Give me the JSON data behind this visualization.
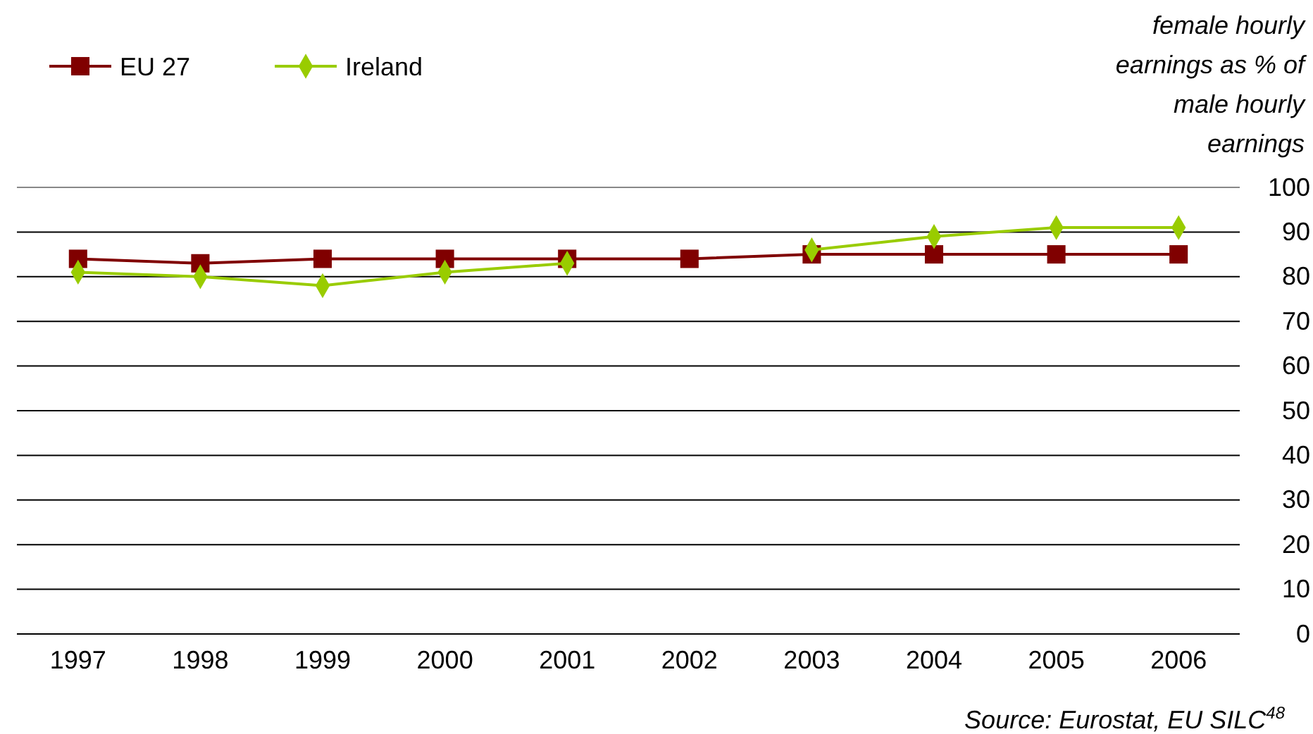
{
  "chart_data": {
    "type": "line",
    "ylabel": "female hourly earnings as % of male hourly earnings",
    "categories": [
      "1997",
      "1998",
      "1999",
      "2000",
      "2001",
      "2002",
      "2003",
      "2004",
      "2005",
      "2006"
    ],
    "series": [
      {
        "name": "EU 27",
        "color": "#800000",
        "marker": "square",
        "values": [
          84,
          83,
          84,
          84,
          84,
          84,
          85,
          85,
          85,
          85
        ]
      },
      {
        "name": "Ireland",
        "color": "#99cc00",
        "marker": "diamond",
        "values": [
          81,
          80,
          78,
          81,
          83,
          null,
          86,
          89,
          91,
          91
        ]
      }
    ],
    "ylim": [
      0,
      100
    ],
    "yticks": [
      0,
      10,
      20,
      30,
      40,
      50,
      60,
      70,
      80,
      90,
      100
    ],
    "grid": "y",
    "legend": "top left",
    "annotations": [
      "Source: Eurostat, EU SILC$^{48}$"
    ]
  }
}
